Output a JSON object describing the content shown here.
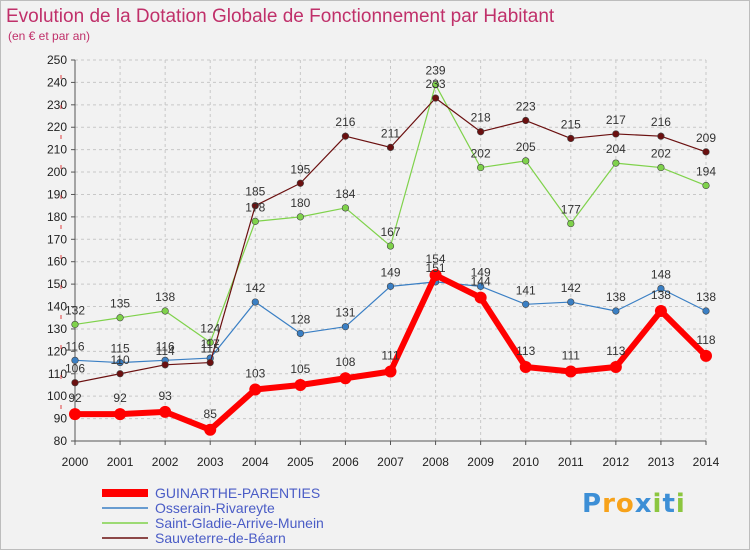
{
  "chart_data": {
    "type": "line",
    "title": "Evolution de la Dotation Globale de Fonctionnement par Habitant",
    "subtitle": "(en € et par an)",
    "categories": [
      "2000",
      "2001",
      "2002",
      "2003",
      "2004",
      "2005",
      "2006",
      "2007",
      "2008",
      "2009",
      "2010",
      "2011",
      "2012",
      "2013",
      "2014"
    ],
    "ylim": [
      80,
      250
    ],
    "yticks": [
      80,
      90,
      100,
      110,
      120,
      130,
      140,
      150,
      160,
      170,
      180,
      190,
      200,
      210,
      220,
      230,
      240,
      250
    ],
    "grid": true,
    "legend_position": "bottom-left",
    "series": [
      {
        "name": "GUINARTHE-PARENTIES",
        "color": "#ff0000",
        "values": [
          92,
          92,
          93,
          85,
          103,
          105,
          108,
          111,
          154,
          144,
          113,
          111,
          113,
          138,
          118
        ]
      },
      {
        "name": "Osserain-Rivareyte",
        "color": "#3a7fc4",
        "values": [
          116,
          115,
          116,
          117,
          142,
          128,
          131,
          149,
          151,
          149,
          141,
          142,
          138,
          148,
          138
        ]
      },
      {
        "name": "Saint-Gladie-Arrive-Munein",
        "color": "#7fd24b",
        "values": [
          132,
          135,
          138,
          124,
          178,
          180,
          184,
          167,
          239,
          202,
          205,
          177,
          204,
          202,
          194
        ]
      },
      {
        "name": "Sauveterre-de-Béarn",
        "color": "#6b1010",
        "values": [
          106,
          110,
          114,
          115,
          185,
          195,
          216,
          211,
          233,
          218,
          223,
          215,
          217,
          216,
          209
        ]
      }
    ]
  },
  "logo": {
    "p": "P",
    "r": "r",
    "o": "o",
    "x": "x",
    "i1": "i",
    "t": "t",
    "i2": "i"
  }
}
